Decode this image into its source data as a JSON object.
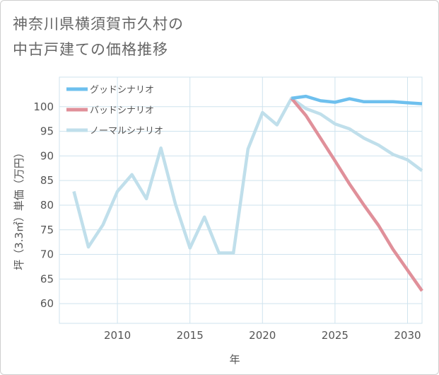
{
  "title_lines": [
    "神奈川県横須賀市久村の",
    "中古戸建ての価格推移"
  ],
  "chart_data": {
    "type": "line",
    "title": "神奈川県横須賀市久村の中古戸建ての価格推移",
    "xlabel": "年",
    "ylabel": "坪（3.3㎡）単価（万円）",
    "xlim": [
      2006,
      2031
    ],
    "ylim": [
      56,
      106
    ],
    "xticks": [
      2010,
      2015,
      2020,
      2025,
      2030
    ],
    "yticks": [
      60,
      65,
      70,
      75,
      80,
      85,
      90,
      95,
      100
    ],
    "grid": true,
    "legend_position": "top-left",
    "series": [
      {
        "name": "ノーマルシナリオ",
        "color": "#c0dfeb",
        "points": [
          [
            2007,
            82.8
          ],
          [
            2008,
            71.5
          ],
          [
            2009,
            76.0
          ],
          [
            2010,
            82.8
          ],
          [
            2011,
            86.2
          ],
          [
            2012,
            81.3
          ],
          [
            2013,
            91.6
          ],
          [
            2014,
            80.2
          ],
          [
            2015,
            71.3
          ],
          [
            2016,
            77.6
          ],
          [
            2017,
            70.3
          ],
          [
            2018,
            70.3
          ],
          [
            2019,
            91.4
          ],
          [
            2020,
            98.8
          ],
          [
            2021,
            96.3
          ],
          [
            2022,
            101.7
          ],
          [
            2023,
            99.6
          ],
          [
            2024,
            98.5
          ],
          [
            2025,
            96.5
          ],
          [
            2026,
            95.5
          ],
          [
            2027,
            93.6
          ],
          [
            2028,
            92.2
          ],
          [
            2029,
            90.3
          ],
          [
            2030,
            89.2
          ],
          [
            2031,
            87.0
          ]
        ]
      },
      {
        "name": "バッドシナリオ",
        "color": "#e0909a",
        "points": [
          [
            2022,
            101.7
          ],
          [
            2023,
            98.2
          ],
          [
            2024,
            93.6
          ],
          [
            2025,
            89.0
          ],
          [
            2026,
            84.3
          ],
          [
            2027,
            80.0
          ],
          [
            2028,
            75.9
          ],
          [
            2029,
            71.0
          ],
          [
            2030,
            66.8
          ],
          [
            2031,
            62.6
          ]
        ]
      },
      {
        "name": "グッドシナリオ",
        "color": "#6ec0ee",
        "points": [
          [
            2022,
            101.7
          ],
          [
            2023,
            102.1
          ],
          [
            2024,
            101.2
          ],
          [
            2025,
            100.9
          ],
          [
            2026,
            101.6
          ],
          [
            2027,
            101.0
          ],
          [
            2028,
            101.0
          ],
          [
            2029,
            101.0
          ],
          [
            2030,
            100.8
          ],
          [
            2031,
            100.6
          ]
        ]
      }
    ],
    "legend": [
      "グッドシナリオ",
      "バッドシナリオ",
      "ノーマルシナリオ"
    ]
  }
}
